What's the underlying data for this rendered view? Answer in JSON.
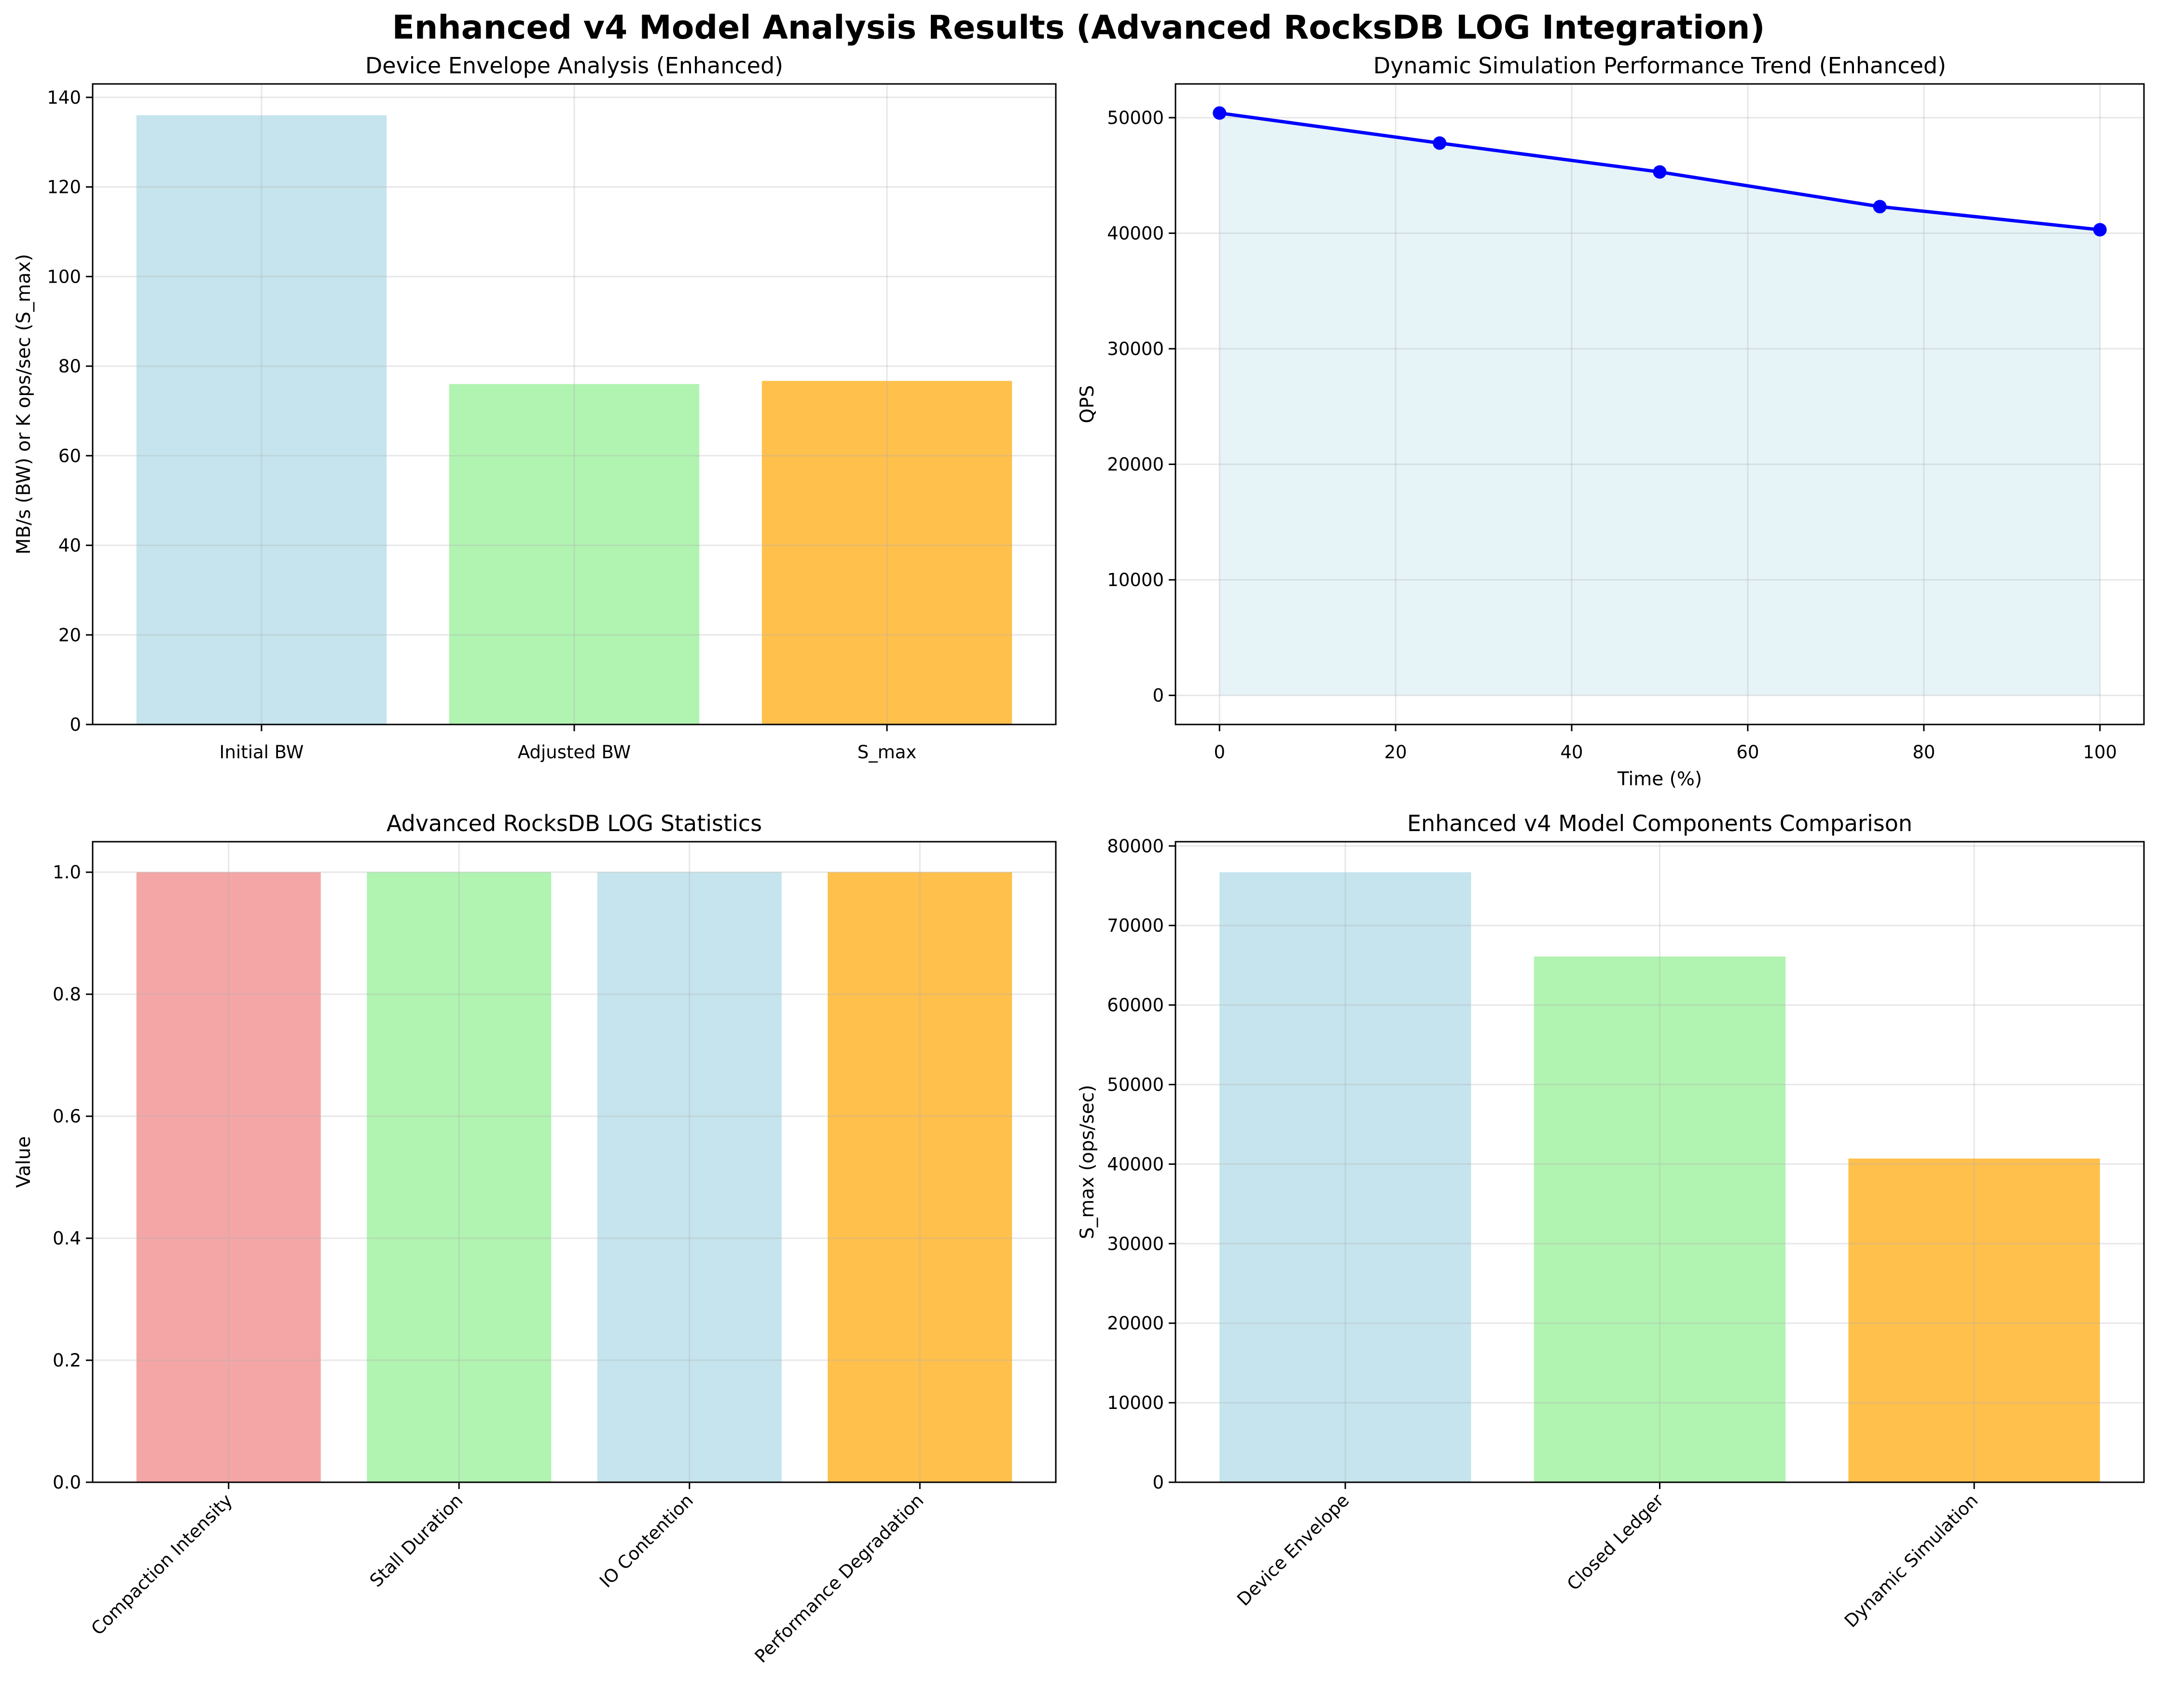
{
  "figure": {
    "suptitle": "Enhanced v4 Model Analysis Results (Advanced RocksDB LOG Integration)"
  },
  "chart_data": [
    {
      "id": "envelope",
      "type": "bar",
      "title": "Device Envelope Analysis (Enhanced)",
      "xlabel": "",
      "ylabel": "MB/s (BW) or K ops/sec (S_max)",
      "categories": [
        "Initial BW",
        "Adjusted BW",
        "S_max"
      ],
      "values": [
        136,
        76,
        76.7
      ],
      "colors": [
        "#add8e6",
        "#90ee90",
        "#ffa500"
      ],
      "ylim": [
        0,
        143
      ],
      "yticks": [
        0,
        20,
        40,
        60,
        80,
        100,
        120,
        140
      ],
      "tick_labels_rotated": false,
      "grid": true
    },
    {
      "id": "trend",
      "type": "area",
      "title": "Dynamic Simulation Performance Trend (Enhanced)",
      "xlabel": "Time (%)",
      "ylabel": "QPS",
      "x": [
        0,
        25,
        50,
        75,
        100
      ],
      "y": [
        50400,
        47800,
        45300,
        42300,
        40300
      ],
      "line_color": "#0000ff",
      "fill_color": "#add8e6",
      "xlim": [
        -5,
        105
      ],
      "ylim": [
        -2520,
        52920
      ],
      "xticks": [
        0,
        20,
        40,
        60,
        80,
        100
      ],
      "yticks": [
        0,
        10000,
        20000,
        30000,
        40000,
        50000
      ],
      "grid": true
    },
    {
      "id": "logstats",
      "type": "bar",
      "title": "Advanced RocksDB LOG Statistics",
      "xlabel": "",
      "ylabel": "Value",
      "categories": [
        "Compaction Intensity",
        "Stall Duration",
        "IO Contention",
        "Performance Degradation"
      ],
      "values": [
        1.0,
        1.0,
        1.0,
        1.0
      ],
      "colors": [
        "#f08080",
        "#90ee90",
        "#add8e6",
        "#ffa500"
      ],
      "ylim": [
        0,
        1.05
      ],
      "yticks": [
        0.0,
        0.2,
        0.4,
        0.6,
        0.8,
        1.0
      ],
      "tick_labels_rotated": true,
      "grid": true
    },
    {
      "id": "components",
      "type": "bar",
      "title": "Enhanced v4 Model Components Comparison",
      "xlabel": "",
      "ylabel": "S_max (ops/sec)",
      "categories": [
        "Device Envelope",
        "Closed Ledger",
        "Dynamic Simulation"
      ],
      "values": [
        76700,
        66100,
        40700
      ],
      "colors": [
        "#add8e6",
        "#90ee90",
        "#ffa500"
      ],
      "ylim": [
        0,
        80535
      ],
      "yticks": [
        0,
        10000,
        20000,
        30000,
        40000,
        50000,
        60000,
        70000,
        80000
      ],
      "tick_labels_rotated": true,
      "grid": true
    }
  ]
}
